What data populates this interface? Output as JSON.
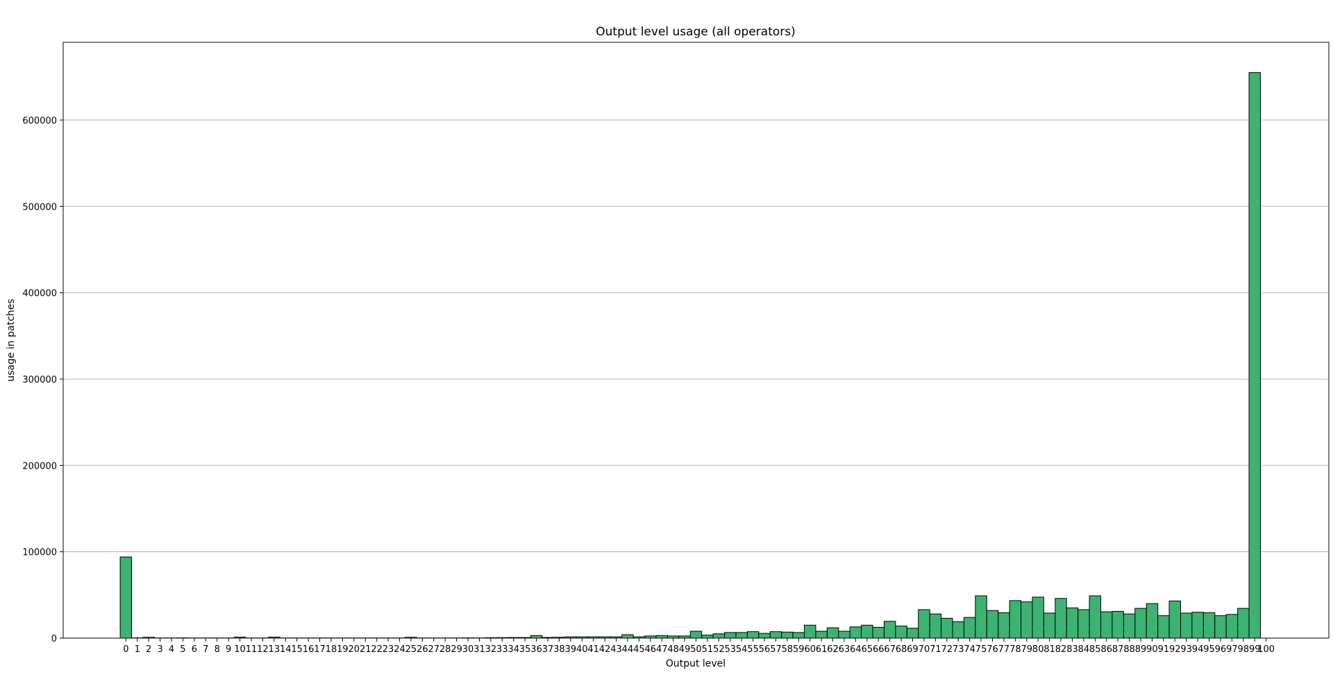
{
  "chart_data": {
    "type": "bar",
    "title": "Output level usage (all operators)",
    "xlabel": "Output level",
    "ylabel": "usage in patches",
    "ylim": [
      0,
      690000
    ],
    "yticks": [
      0,
      100000,
      200000,
      300000,
      400000,
      500000,
      600000
    ],
    "ytick_labels": [
      "0",
      "100000",
      "200000",
      "300000",
      "400000",
      "500000",
      "600000"
    ],
    "xtick_labels": [
      "0",
      "1",
      "2",
      "3",
      "4",
      "5",
      "6",
      "7",
      "8",
      "9",
      "10",
      "11",
      "12",
      "13",
      "14",
      "15",
      "16",
      "17",
      "18",
      "19",
      "20",
      "21",
      "22",
      "23",
      "24",
      "25",
      "26",
      "27",
      "28",
      "29",
      "30",
      "31",
      "32",
      "33",
      "34",
      "35",
      "36",
      "37",
      "38",
      "39",
      "40",
      "41",
      "42",
      "43",
      "44",
      "45",
      "46",
      "47",
      "48",
      "49",
      "50",
      "51",
      "52",
      "53",
      "54",
      "55",
      "56",
      "57",
      "58",
      "59",
      "60",
      "61",
      "62",
      "63",
      "64",
      "65",
      "66",
      "67",
      "68",
      "69",
      "70",
      "71",
      "72",
      "73",
      "74",
      "75",
      "76",
      "77",
      "78",
      "79",
      "80",
      "81",
      "82",
      "83",
      "84",
      "85",
      "86",
      "87",
      "88",
      "89",
      "90",
      "91",
      "92",
      "93",
      "94",
      "95",
      "96",
      "97",
      "98",
      "99",
      "100"
    ],
    "x_range": [
      -5.5,
      105.5
    ],
    "bar_color": "#3cb371",
    "edge_color": "#000000",
    "grid": "y",
    "categories": [
      0,
      1,
      2,
      3,
      4,
      5,
      6,
      7,
      8,
      9,
      10,
      11,
      12,
      13,
      14,
      15,
      16,
      17,
      18,
      19,
      20,
      21,
      22,
      23,
      24,
      25,
      26,
      27,
      28,
      29,
      30,
      31,
      32,
      33,
      34,
      35,
      36,
      37,
      38,
      39,
      40,
      41,
      42,
      43,
      44,
      45,
      46,
      47,
      48,
      49,
      50,
      51,
      52,
      53,
      54,
      55,
      56,
      57,
      58,
      59,
      60,
      61,
      62,
      63,
      64,
      65,
      66,
      67,
      68,
      69,
      70,
      71,
      72,
      73,
      74,
      75,
      76,
      77,
      78,
      79,
      80,
      81,
      82,
      83,
      84,
      85,
      86,
      87,
      88,
      89,
      90,
      91,
      92,
      93,
      94,
      95,
      96,
      97,
      98,
      99
    ],
    "values": [
      94000,
      300,
      1000,
      200,
      200,
      300,
      200,
      200,
      200,
      200,
      1200,
      200,
      200,
      1200,
      200,
      200,
      200,
      200,
      200,
      200,
      200,
      200,
      200,
      200,
      200,
      1000,
      200,
      200,
      200,
      200,
      300,
      200,
      500,
      600,
      700,
      700,
      3000,
      800,
      1000,
      1500,
      1500,
      1500,
      1500,
      1500,
      4000,
      1500,
      2500,
      3000,
      2500,
      2500,
      8000,
      3500,
      5000,
      6500,
      6500,
      7500,
      5500,
      7500,
      7000,
      6500,
      15000,
      8000,
      12000,
      8000,
      13000,
      15000,
      12500,
      19500,
      14000,
      11500,
      33000,
      28000,
      23000,
      19000,
      24000,
      49000,
      32000,
      29500,
      43500,
      42000,
      47500,
      29000,
      46000,
      35000,
      33000,
      49000,
      30500,
      31000,
      28000,
      34500,
      40000,
      26000,
      43000,
      29000,
      30000,
      29500,
      26000,
      27500,
      34500,
      655000
    ]
  }
}
